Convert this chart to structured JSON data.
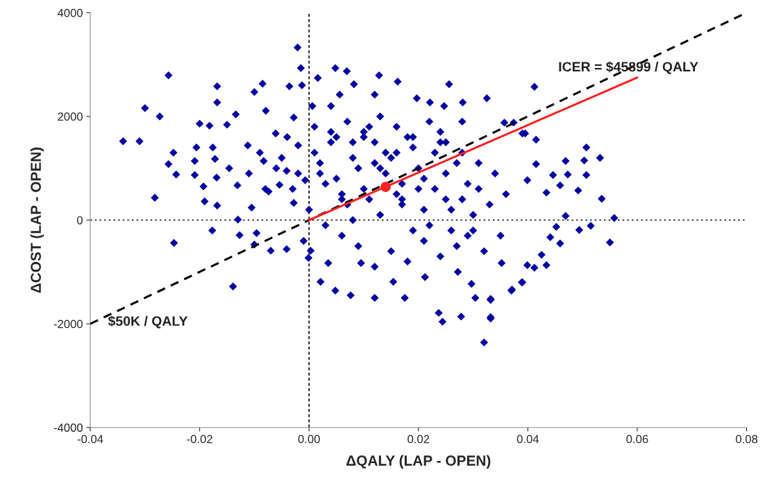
{
  "chart_data": {
    "type": "scatter",
    "xlabel": "ΔQALY (LAP - OPEN)",
    "ylabel": "ΔCOST (LAP - OPEN)",
    "xlim": [
      -0.04,
      0.08
    ],
    "xticks": [
      {
        "value": -0.04,
        "label": "-0.04"
      },
      {
        "value": -0.02,
        "label": "-0.02"
      },
      {
        "value": 0,
        "label": "0.00"
      },
      {
        "value": 0.02,
        "label": "0.02"
      },
      {
        "value": 0.04,
        "label": "0.04"
      },
      {
        "value": 0.06,
        "label": "0.06"
      },
      {
        "value": 0.08,
        "label": "0.08"
      }
    ],
    "ylim": [
      -4000,
      4000
    ],
    "yticks": [
      -4000,
      -2000,
      0,
      2000,
      4000
    ],
    "grid": false,
    "legend": false,
    "series": [
      {
        "color": "#0000a0",
        "marker": "diamond",
        "x": [
          -0.034,
          -0.031,
          -0.03,
          -0.0257,
          -0.0273,
          -0.0282,
          -0.0247,
          -0.0248,
          -0.0257,
          -0.0243,
          -0.02,
          -0.0182,
          -0.0206,
          -0.0209,
          -0.0209,
          -0.0193,
          -0.0191,
          -0.0168,
          -0.0177,
          -0.0176,
          -0.0172,
          -0.0169,
          -0.0168,
          -0.0168,
          -0.0139,
          -0.0085,
          -0.01,
          -0.0021,
          -0.0015,
          -0.0036,
          -0.0013,
          -0.015,
          -0.0134,
          -0.0146,
          -0.0131,
          -0.013,
          -0.0127,
          -0.01,
          -0.007,
          -0.0041,
          -0.0001,
          -0.0096,
          -0.0105,
          -0.0112,
          -0.0079,
          -0.0061,
          -0.0083,
          -0.0054,
          -0.0028,
          -0.0074,
          -0.002,
          -0.0041,
          -0.0007,
          -0.0028,
          0.0006,
          0.0048,
          0.0069,
          0.0016,
          0.0128,
          0.0162,
          0.0256,
          0.0325,
          0.0082,
          0.0021,
          0.0048,
          0.0076,
          0.012,
          0.0175,
          0.0237,
          0.0244,
          0.0278,
          0.0332,
          0.032,
          0.0304,
          0.0332,
          0.037,
          0.039,
          0.0003,
          0.0035,
          0.0095,
          0.0154,
          0.0212,
          0.0272,
          0.0297,
          0.0352,
          0.0399,
          0.0247,
          0.0281,
          0.0221,
          0.0197,
          0.012,
          0.0056,
          0.0357,
          0.039,
          0.0412,
          0.0415,
          0.0507,
          0.0532,
          0.0469,
          0.0503,
          0.0507,
          0.0446,
          0.0473,
          0.0535,
          0.0492,
          0.0459,
          0.0434,
          0.0558,
          0.0469,
          0.0515,
          0.0494,
          0.0452,
          0.055,
          0.0459,
          0.0441,
          0.0425,
          0.0434,
          0.0412,
          0.0389,
          0.0371,
          0.0332,
          0.0332,
          0.0374,
          0.0395,
          0.0415,
          0.0399,
          0.001,
          0.004,
          0.007,
          0.01,
          0.013,
          0.016,
          0.019,
          0.022,
          0.025,
          0.028,
          0.031,
          0.034,
          0.036,
          0.033,
          0.03,
          0.027,
          0.024,
          0.021,
          0.018,
          0.015,
          0.012,
          0.009,
          0.006,
          0.003,
          0.0,
          -0.003,
          -0.006,
          -0.009,
          -0.004,
          0.002,
          0.005,
          0.008,
          0.011,
          0.014,
          0.017,
          0.02,
          0.023,
          0.026,
          0.029,
          0.032,
          0.016,
          0.008,
          0.019,
          0.025,
          -0.001,
          0.012,
          0.006,
          0.004,
          0.028,
          0.035,
          0.001,
          0.003,
          0.005,
          0.007,
          0.009,
          0.011,
          0.013,
          0.015,
          0.017,
          0.019,
          0.021,
          0.023,
          0.025,
          0.027,
          0.029,
          0.031,
          0.002,
          0.004,
          0.006,
          0.008,
          0.01,
          0.012,
          0.014,
          0.016,
          0.018,
          0.02,
          0.022,
          0.024,
          0.026,
          0.028,
          0.03,
          -0.002,
          -0.005,
          -0.008,
          -0.011,
          0.01,
          0.013,
          0.017,
          0.021,
          0.024
        ],
        "values": [
          1520,
          1520,
          2160,
          2790,
          2000,
          430,
          -440,
          1300,
          1080,
          880,
          1860,
          1820,
          1400,
          1140,
          870,
          650,
          360,
          280,
          -200,
          1400,
          1180,
          820,
          2580,
          2270,
          -1280,
          2630,
          2470,
          3330,
          2930,
          2580,
          2600,
          1840,
          2040,
          1000,
          670,
          10,
          -290,
          -470,
          -590,
          -560,
          -730,
          -250,
          240,
          1440,
          2110,
          1670,
          1140,
          680,
          330,
          550,
          1440,
          950,
          770,
          1980,
          2200,
          2930,
          2870,
          2740,
          2790,
          2670,
          2620,
          2350,
          2620,
          -1190,
          -1360,
          -1450,
          -1500,
          -1500,
          -1790,
          -1960,
          -1860,
          -1870,
          -2360,
          -1500,
          -1520,
          -1360,
          -1200,
          -590,
          -830,
          -830,
          -1190,
          -1100,
          -1000,
          -1230,
          -830,
          -870,
          2200,
          2270,
          2270,
          2350,
          2420,
          2420,
          1880,
          1670,
          2570,
          1550,
          1400,
          1200,
          1140,
          1150,
          870,
          870,
          880,
          410,
          570,
          670,
          530,
          40,
          80,
          -110,
          -190,
          -130,
          -430,
          -450,
          -330,
          -670,
          -870,
          -920,
          -1200,
          -1340,
          -1540,
          -1900,
          1880,
          1670,
          1080,
          770,
          1800,
          1500,
          1900,
          1700,
          2000,
          1800,
          1600,
          1900,
          1500,
          1300,
          1100,
          900,
          500,
          300,
          -200,
          -500,
          -700,
          -400,
          -800,
          -600,
          -900,
          -500,
          -300,
          -100,
          200,
          600,
          1000,
          1300,
          1600,
          1100,
          800,
          1200,
          400,
          900,
          300,
          1000,
          600,
          200,
          700,
          -600,
          1300,
          0,
          -200,
          900,
          -400,
          1500,
          500,
          2200,
          1900,
          -300,
          1300,
          700,
          1600,
          300,
          1000,
          1800,
          100,
          1200,
          700,
          1400,
          200,
          1300,
          400,
          1100,
          -300,
          600,
          900,
          1700,
          400,
          1500,
          600,
          1100,
          1300,
          500,
          1600,
          600,
          -100,
          1500,
          -200,
          400,
          100,
          900,
          1200,
          600,
          900,
          1600,
          1000,
          400,
          800,
          1700
        ]
      },
      {
        "type": "line",
        "color": "#000000",
        "line_style": "dashed",
        "x": [
          -0.04,
          0.08
        ],
        "values": [
          -2000,
          4000
        ]
      },
      {
        "type": "line",
        "color": "#ff2020",
        "line_style": "solid",
        "x": [
          0,
          0.06
        ],
        "values": [
          0,
          2750
        ]
      },
      {
        "color": "#ff2020",
        "marker": "circle",
        "x": [
          0.014
        ],
        "values": [
          640
        ]
      }
    ],
    "ref_lines": [
      {
        "axis": "x",
        "value": 0,
        "color": "#000000",
        "line_style": "dashed"
      },
      {
        "axis": "y",
        "value": 0,
        "color": "#000000",
        "line_style": "dotted"
      }
    ],
    "annotations": [
      "ICER = $45899 / QALY",
      "$50K / QALY"
    ]
  }
}
